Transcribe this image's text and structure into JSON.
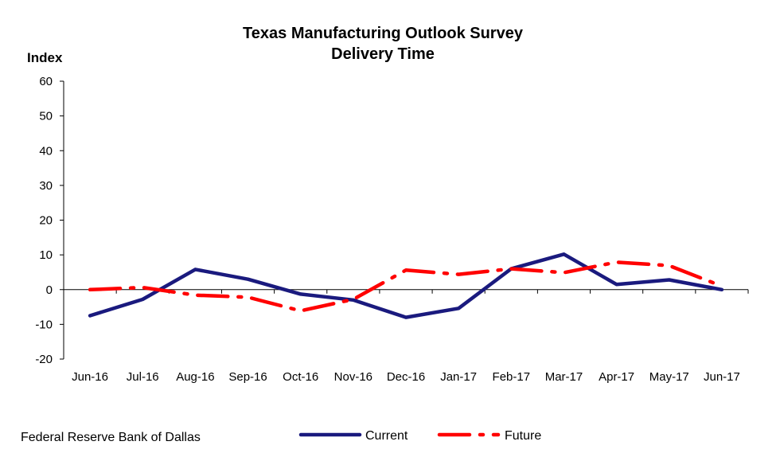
{
  "chart_data": {
    "type": "line",
    "title": "Texas Manufacturing Outlook Survey",
    "subtitle": "Delivery Time",
    "ylabel": "Index",
    "xlabel": "",
    "ylim": [
      -20,
      60
    ],
    "yticks": [
      -20,
      -10,
      0,
      10,
      20,
      30,
      40,
      50,
      60
    ],
    "grid": false,
    "legend_position": "bottom",
    "categories": [
      "Jun-16",
      "Jul-16",
      "Aug-16",
      "Sep-16",
      "Oct-16",
      "Nov-16",
      "Dec-16",
      "Jan-17",
      "Feb-17",
      "Mar-17",
      "Apr-17",
      "May-17",
      "Jun-17"
    ],
    "series": [
      {
        "name": "Current",
        "color": "#1a1a7e",
        "style": "solid",
        "values": [
          -7.5,
          -2.8,
          5.8,
          3.0,
          -1.3,
          -3.0,
          -8.0,
          -5.4,
          6.0,
          10.2,
          1.5,
          2.8,
          0.0
        ]
      },
      {
        "name": "Future",
        "color": "#ff0000",
        "style": "dash-dot",
        "values": [
          0.0,
          0.6,
          -1.6,
          -2.2,
          -6.1,
          -2.8,
          5.6,
          4.4,
          6.0,
          4.9,
          7.9,
          6.9,
          1.0
        ]
      }
    ]
  },
  "footer": {
    "source": "Federal Reserve Bank of Dallas"
  }
}
